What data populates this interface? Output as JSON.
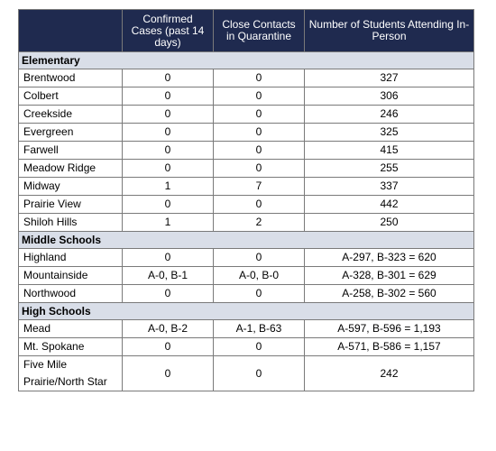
{
  "headers": {
    "school": "",
    "confirmed": "Confirmed Cases (past 14 days)",
    "close": "Close Contacts in Quarantine",
    "students": "Number of Students Attending In-Person"
  },
  "sections": [
    {
      "title": "Elementary",
      "rows": [
        {
          "name": "Brentwood",
          "confirmed": "0",
          "close": "0",
          "students": "327"
        },
        {
          "name": "Colbert",
          "confirmed": "0",
          "close": "0",
          "students": "306"
        },
        {
          "name": "Creekside",
          "confirmed": "0",
          "close": "0",
          "students": "246"
        },
        {
          "name": "Evergreen",
          "confirmed": "0",
          "close": "0",
          "students": "325"
        },
        {
          "name": "Farwell",
          "confirmed": "0",
          "close": "0",
          "students": "415"
        },
        {
          "name": "Meadow Ridge",
          "confirmed": "0",
          "close": "0",
          "students": "255"
        },
        {
          "name": "Midway",
          "confirmed": "1",
          "close": "7",
          "students": "337"
        },
        {
          "name": "Prairie View",
          "confirmed": "0",
          "close": "0",
          "students": "442"
        },
        {
          "name": "Shiloh Hills",
          "confirmed": "1",
          "close": "2",
          "students": "250"
        }
      ]
    },
    {
      "title": "Middle Schools",
      "rows": [
        {
          "name": "Highland",
          "confirmed": "0",
          "close": "0",
          "students": "A-297, B-323 = 620"
        },
        {
          "name": "Mountainside",
          "confirmed": "A-0, B-1",
          "close": "A-0, B-0",
          "students": "A-328, B-301 = 629"
        },
        {
          "name": "Northwood",
          "confirmed": "0",
          "close": "0",
          "students": "A-258, B-302 = 560"
        }
      ]
    },
    {
      "title": "High Schools",
      "rows": [
        {
          "name": "Mead",
          "confirmed": "A-0, B-2",
          "close": "A-1, B-63",
          "students": "A-597, B-596 = 1,193"
        },
        {
          "name": "Mt. Spokane",
          "confirmed": "0",
          "close": "0",
          "students": "A-571, B-586 = 1,157"
        },
        {
          "name": "Five Mile Prairie/North Star",
          "confirmed": "0",
          "close": "0",
          "students": "242"
        }
      ]
    }
  ]
}
